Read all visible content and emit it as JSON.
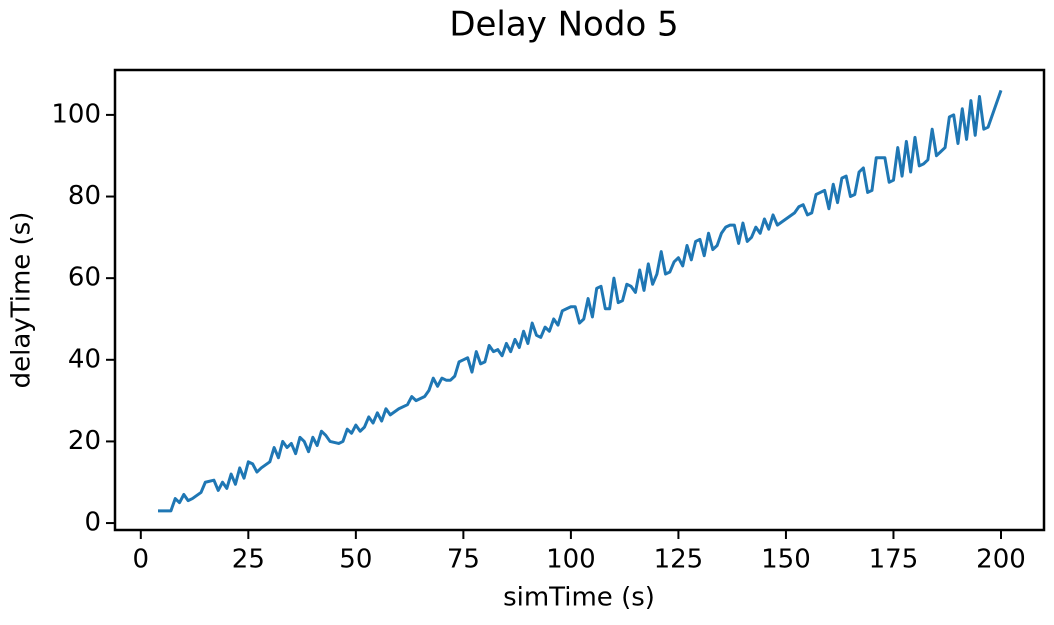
{
  "chart_data": {
    "type": "line",
    "title": "Delay Nodo 5",
    "xlabel": "simTime (s)",
    "ylabel": "delayTime (s)",
    "x": [
      4,
      6,
      7,
      8,
      9,
      10,
      11,
      12,
      14,
      15,
      17,
      18,
      19,
      20,
      21,
      22,
      23,
      24,
      25,
      26,
      27,
      28,
      30,
      31,
      32,
      33,
      34,
      35,
      36,
      37,
      38,
      39,
      40,
      41,
      42,
      43,
      44,
      46,
      47,
      48,
      49,
      50,
      51,
      52,
      53,
      54,
      55,
      56,
      57,
      58,
      60,
      62,
      63,
      64,
      66,
      67,
      68,
      69,
      70,
      71,
      72,
      73,
      74,
      75,
      76,
      77,
      78,
      79,
      80,
      81,
      82,
      83,
      84,
      85,
      86,
      87,
      88,
      89,
      90,
      91,
      92,
      93,
      94,
      95,
      96,
      97,
      98,
      99,
      100,
      101,
      102,
      103,
      104,
      105,
      106,
      107,
      108,
      109,
      110,
      111,
      112,
      113,
      114,
      115,
      116,
      117,
      118,
      119,
      120,
      121,
      122,
      123,
      124,
      125,
      126,
      127,
      128,
      129,
      130,
      131,
      132,
      133,
      134,
      135,
      136,
      137,
      138,
      139,
      140,
      141,
      142,
      143,
      144,
      145,
      146,
      147,
      148,
      150,
      152,
      153,
      154,
      155,
      156,
      157,
      158,
      159,
      160,
      161,
      162,
      163,
      164,
      165,
      166,
      167,
      168,
      169,
      170,
      171,
      172,
      173,
      174,
      175,
      176,
      177,
      178,
      179,
      180,
      181,
      182,
      183,
      184,
      185,
      186,
      187,
      188,
      189,
      190,
      191,
      192,
      193,
      194,
      195,
      196,
      197,
      200
    ],
    "series": [
      {
        "color": "#1f77b4",
        "values": [
          3,
          3,
          3,
          6,
          5,
          7,
          5.5,
          6,
          7.5,
          10,
          10.5,
          8,
          10,
          8.5,
          12,
          9.5,
          13.5,
          11,
          15,
          14.5,
          12.5,
          13.5,
          15,
          18.5,
          16,
          20,
          18.5,
          19.5,
          17,
          21,
          20,
          17.5,
          21,
          19,
          22.5,
          21.5,
          20,
          19.5,
          20,
          23,
          22,
          24,
          22.5,
          23.5,
          26,
          24.5,
          27,
          25,
          28,
          26.5,
          28,
          29,
          31,
          30,
          31,
          32.5,
          35.5,
          33.5,
          35.5,
          35,
          35,
          36,
          39.5,
          40,
          40.5,
          37,
          42,
          39,
          39.5,
          43.5,
          42,
          42.5,
          41,
          44,
          42,
          45,
          43,
          47,
          44,
          49,
          46,
          45.5,
          48,
          47,
          50,
          48.5,
          52,
          52.5,
          53,
          53,
          49,
          50,
          55,
          50.5,
          57.5,
          58,
          52.5,
          52.5,
          60,
          54,
          54.5,
          58.5,
          58,
          56.5,
          62,
          57,
          63.5,
          58.5,
          61,
          66.5,
          61,
          61.5,
          64,
          65,
          63,
          68,
          64.5,
          69,
          69.5,
          65.5,
          71,
          67,
          68,
          71,
          72.5,
          73,
          73,
          68.5,
          73.5,
          69,
          70,
          72.5,
          71,
          74.5,
          72,
          75.5,
          73,
          74.5,
          76,
          77.5,
          78,
          75.5,
          76,
          80.5,
          81,
          81.5,
          77,
          83,
          78.5,
          84.5,
          85,
          80,
          80.5,
          86,
          87,
          81,
          81.5,
          89.5,
          89.5,
          89.5,
          83.5,
          84,
          92,
          85,
          93.5,
          86,
          94.5,
          87.5,
          88,
          89,
          96.5,
          90,
          91,
          92,
          99.5,
          100,
          93,
          101.5,
          94,
          103.5,
          95,
          104.5,
          96.5,
          97,
          106
        ]
      }
    ],
    "xlim": [
      -6,
      210
    ],
    "ylim": [
      -1.7,
      111
    ],
    "xticks": [
      0,
      25,
      50,
      75,
      100,
      125,
      150,
      175,
      200
    ],
    "yticks": [
      0,
      20,
      40,
      60,
      80,
      100
    ]
  }
}
